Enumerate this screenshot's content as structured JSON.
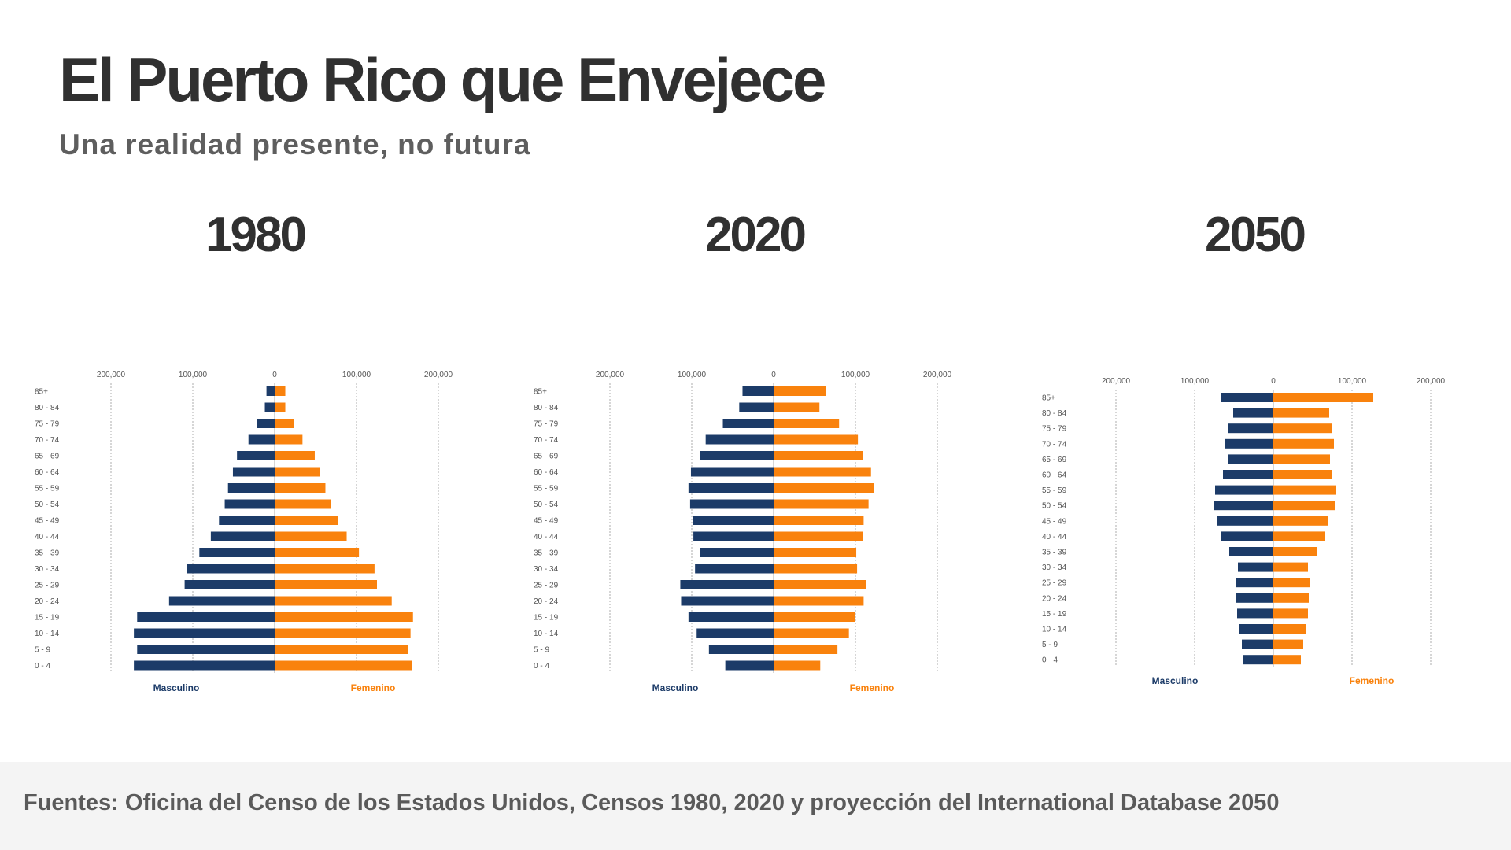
{
  "header": {
    "title": "El Puerto Rico que Envejece",
    "subtitle": "Una realidad presente, no futura"
  },
  "footer": {
    "source": "Fuentes: Oficina del Censo de los Estados Unidos, Censos 1980, 2020 y proyección del International Database 2050"
  },
  "colors": {
    "male": "#1c3b68",
    "female": "#f9820d",
    "grid": "#9a9a9a",
    "tick": "#555555"
  },
  "chart_data": [
    {
      "type": "bar",
      "title": "1980",
      "orientation": "horizontal-pyramid",
      "xlim": [
        -200000,
        200000
      ],
      "xticks": [
        -200000,
        -100000,
        0,
        100000,
        200000
      ],
      "xtick_labels": [
        "200,000",
        "100,000",
        "0",
        "100,000",
        "200,000"
      ],
      "categories": [
        "85+",
        "80 - 84",
        "75 - 79",
        "70 - 74",
        "65 - 69",
        "60 - 64",
        "55 - 59",
        "50 - 54",
        "45 - 49",
        "40 - 44",
        "35 - 39",
        "30 - 34",
        "25 - 29",
        "20 - 24",
        "15 - 19",
        "10 - 14",
        "5 - 9",
        "0 - 4"
      ],
      "series": [
        {
          "name": "Masculino",
          "values": [
            10000,
            12000,
            22000,
            32000,
            46000,
            51000,
            57000,
            61000,
            68000,
            78000,
            92000,
            107000,
            110000,
            129000,
            168000,
            172000,
            168000,
            172000
          ]
        },
        {
          "name": "Femenino",
          "values": [
            13000,
            13000,
            24000,
            34000,
            49000,
            55000,
            62000,
            69000,
            77000,
            88000,
            103000,
            122000,
            125000,
            143000,
            169000,
            166000,
            163000,
            168000
          ]
        }
      ],
      "legend": [
        "Masculino",
        "Femenino"
      ]
    },
    {
      "type": "bar",
      "title": "2020",
      "orientation": "horizontal-pyramid",
      "xlim": [
        -200000,
        200000
      ],
      "xticks": [
        -200000,
        -100000,
        0,
        100000,
        200000
      ],
      "xtick_labels": [
        "200,000",
        "100,000",
        "0",
        "100,000",
        "200,000"
      ],
      "categories": [
        "85+",
        "80 - 84",
        "75 - 79",
        "70 - 74",
        "65 - 69",
        "60 - 64",
        "55 - 59",
        "50 - 54",
        "45 - 49",
        "40 - 44",
        "35 - 39",
        "30 - 34",
        "25 - 29",
        "20 - 24",
        "15 - 19",
        "10 - 14",
        "5 - 9",
        "0 - 4"
      ],
      "series": [
        {
          "name": "Masculino",
          "values": [
            38000,
            42000,
            62000,
            83000,
            90000,
            101000,
            104000,
            102000,
            99000,
            98000,
            90000,
            96000,
            114000,
            113000,
            104000,
            94000,
            79000,
            59000
          ]
        },
        {
          "name": "Femenino",
          "values": [
            64000,
            56000,
            80000,
            103000,
            109000,
            119000,
            123000,
            116000,
            110000,
            109000,
            101000,
            102000,
            113000,
            110000,
            100000,
            92000,
            78000,
            57000
          ]
        }
      ],
      "legend": [
        "Masculino",
        "Femenino"
      ]
    },
    {
      "type": "bar",
      "title": "2050",
      "orientation": "horizontal-pyramid",
      "xlim": [
        -200000,
        200000
      ],
      "xticks": [
        -200000,
        -100000,
        0,
        100000,
        200000
      ],
      "xtick_labels": [
        "200,000",
        "100,000",
        "0",
        "100,000",
        "200,000"
      ],
      "categories": [
        "85+",
        "80 - 84",
        "75 - 79",
        "70 - 74",
        "65 - 69",
        "60 - 64",
        "55 - 59",
        "50 - 54",
        "45 - 49",
        "40 - 44",
        "35 - 39",
        "30 - 34",
        "25 - 29",
        "20 - 24",
        "15 - 19",
        "10 - 14",
        "5 - 9",
        "0 - 4"
      ],
      "series": [
        {
          "name": "Masculino",
          "values": [
            67000,
            51000,
            58000,
            62000,
            58000,
            64000,
            74000,
            75000,
            71000,
            67000,
            56000,
            45000,
            47000,
            48000,
            46000,
            43000,
            40000,
            38000
          ]
        },
        {
          "name": "Femenino",
          "values": [
            127000,
            71000,
            75000,
            77000,
            72000,
            74000,
            80000,
            78000,
            70000,
            66000,
            55000,
            44000,
            46000,
            45000,
            44000,
            41000,
            38000,
            35000
          ]
        }
      ],
      "legend": [
        "Masculino",
        "Femenino"
      ]
    }
  ]
}
